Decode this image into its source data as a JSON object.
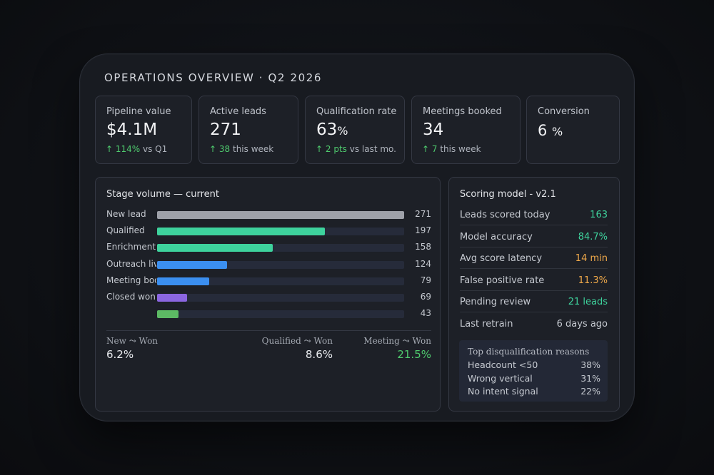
{
  "title": "OPERATIONS OVERVIEW · Q2 2026",
  "kpis": [
    {
      "label": "Pipeline value",
      "value": "$4.1M",
      "unit": "",
      "arrow": "↑",
      "delta": "114%",
      "delta_suffix": " vs Q1"
    },
    {
      "label": "Active leads",
      "value": "271",
      "unit": "",
      "arrow": "↑",
      "delta": "38",
      "delta_suffix": " this week"
    },
    {
      "label": "Qualification rate",
      "value": "63",
      "unit": "%",
      "arrow": "↑",
      "delta": "2 pts",
      "delta_suffix": " vs last mo."
    },
    {
      "label": "Meetings booked",
      "value": "34",
      "unit": "",
      "arrow": "↑",
      "delta": "7",
      "delta_suffix": " this week"
    },
    {
      "label": "Conversion",
      "value": "6 ",
      "unit": "%"
    }
  ],
  "stage_volume": {
    "title": "Stage volume — current",
    "rows": [
      {
        "name": "New lead",
        "value": "271",
        "fraction": 1.0,
        "color": "#9ea1a9"
      },
      {
        "name": "Qualified",
        "value": "197",
        "fraction": 0.679,
        "color": "#3ed39d"
      },
      {
        "name": "Enrichment",
        "value": "158",
        "fraction": 0.469,
        "color": "#3ed39d"
      },
      {
        "name": "Outreach live",
        "value": "124",
        "fraction": 0.283,
        "color": "#3b8ff0"
      },
      {
        "name": "Meeting booked",
        "value": "79",
        "fraction": 0.211,
        "color": "#3b8ff0"
      },
      {
        "name": "Closed won",
        "value": "69",
        "fraction": 0.121,
        "color": "#8b66e0"
      },
      {
        "name": "",
        "value": "43",
        "fraction": 0.087,
        "color": "#5dba64"
      }
    ],
    "conversions": [
      {
        "label": "New ⤳ Won",
        "value": "6.2%",
        "color": "#e8eaee"
      },
      {
        "label": "Qualified ⤳ Won",
        "value": "8.6%",
        "color": "#e8eaee"
      },
      {
        "label": "Meeting ⤳ Won",
        "value": "21.5%",
        "color": "#4fcb6e"
      }
    ]
  },
  "scoring_model": {
    "title": "Scoring model - v2.1",
    "metrics": [
      {
        "name": "Leads scored today",
        "value": "163",
        "color": "#3ed39d"
      },
      {
        "name": "Model accuracy",
        "value": "84.7%",
        "color": "#3ed39d"
      },
      {
        "name": "Avg score latency",
        "value": "14 min",
        "color": "#f0a94a"
      },
      {
        "name": "False positive rate",
        "value": "11.3%",
        "color": "#f0a94a"
      },
      {
        "name": "Pending review",
        "value": "21 leads",
        "color": "#3ed39d"
      },
      {
        "name": "Last retrain",
        "value": "6 days ago",
        "color": "#c5c9d0"
      }
    ],
    "reasons": {
      "title": "Top disqualification reasons",
      "items": [
        {
          "name": "Headcount <50",
          "pct": "38%"
        },
        {
          "name": "Wrong vertical",
          "pct": "31%"
        },
        {
          "name": "No intent signal",
          "pct": "22%"
        }
      ]
    }
  }
}
